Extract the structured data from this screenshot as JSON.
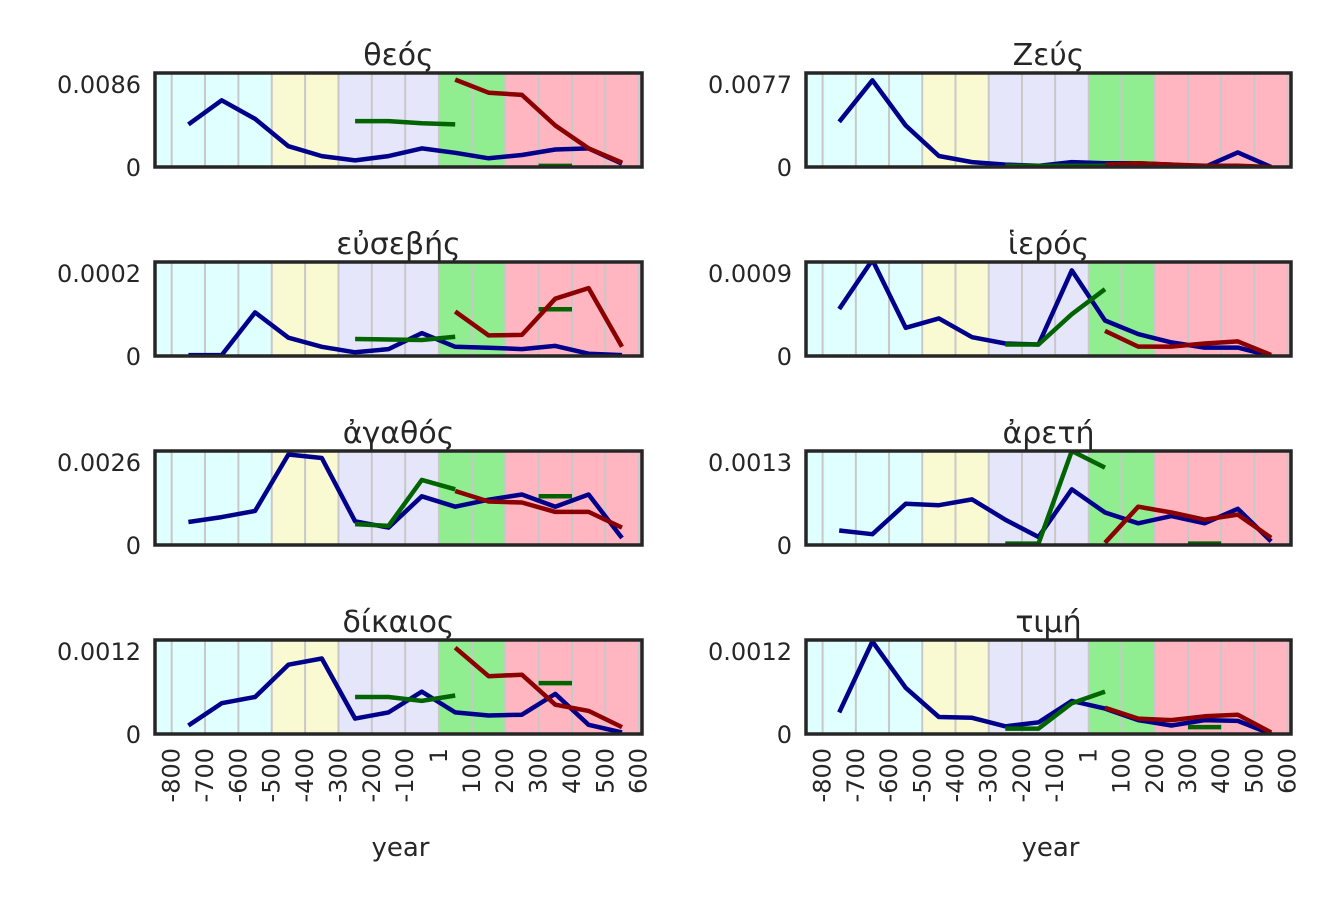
{
  "chart_data": {
    "type": "line",
    "xlabel": "year",
    "ylabel": "",
    "x_ticks": [
      "-800",
      "-700",
      "-600",
      "-500",
      "-400",
      "-300",
      "-200",
      "-100",
      "1",
      "100",
      "200",
      "300",
      "400",
      "500",
      "600"
    ],
    "xlim": [
      -850,
      610
    ],
    "period_bands": [
      {
        "start": -850,
        "end": -500,
        "color": "#e0ffff"
      },
      {
        "start": -500,
        "end": -300,
        "color": "#fafad2"
      },
      {
        "start": -300,
        "end": 1,
        "color": "#e6e6fa"
      },
      {
        "start": 1,
        "end": 200,
        "color": "#90ee90"
      },
      {
        "start": 200,
        "end": 610,
        "color": "#ffb6c1"
      }
    ],
    "series_colors": {
      "blue": "#00008b",
      "green": "#006400",
      "red": "#8b0000"
    },
    "panels": [
      {
        "title": "θεός",
        "ymax_label": "0.0086",
        "ymin_label": "0",
        "ylim": [
          0,
          0.0086
        ],
        "series": [
          {
            "color": "blue",
            "x": [
              -750,
              -650,
              -550,
              -450,
              -350,
              -250,
              -150,
              -50,
              50,
              150,
              250,
              350,
              450,
              550
            ],
            "y": [
              0.0039,
              0.0061,
              0.0044,
              0.0019,
              0.001,
              0.0006,
              0.001,
              0.0017,
              0.0013,
              0.0008,
              0.0011,
              0.0016,
              0.0017,
              0.0003
            ]
          },
          {
            "color": "green",
            "x": [
              -250,
              -150,
              -50,
              50
            ],
            "y": [
              0.0042,
              0.0042,
              0.004,
              0.0039
            ]
          },
          {
            "color": "green",
            "x": [
              300,
              400
            ],
            "y": [
              0.0001,
              0.0001
            ]
          },
          {
            "color": "red",
            "x": [
              50,
              150,
              250,
              350,
              450,
              550
            ],
            "y": [
              0.008,
              0.0068,
              0.0066,
              0.0038,
              0.0017,
              0.0004
            ]
          }
        ]
      },
      {
        "title": "Ζεύς",
        "ymax_label": "0.0077",
        "ymin_label": "0",
        "ylim": [
          0,
          0.0077
        ],
        "series": [
          {
            "color": "blue",
            "x": [
              -750,
              -650,
              -550,
              -450,
              -350,
              -250,
              -150,
              -50,
              50,
              150,
              250,
              350,
              450,
              550
            ],
            "y": [
              0.0037,
              0.0071,
              0.0034,
              0.0009,
              0.0004,
              0.0002,
              0.0001,
              0.0004,
              0.0003,
              0.0003,
              0.0002,
              0.0,
              0.0012,
              0.0
            ]
          },
          {
            "color": "green",
            "x": [
              -250,
              -150,
              -50,
              50
            ],
            "y": [
              0.0001,
              0.0001,
              0.0001,
              0.0001
            ]
          },
          {
            "color": "red",
            "x": [
              50,
              150,
              250,
              350,
              450,
              550
            ],
            "y": [
              0.0002,
              0.0003,
              0.0002,
              0.0001,
              0.0001,
              0.0
            ]
          }
        ]
      },
      {
        "title": "εὐσεβής",
        "ymax_label": "0.0002",
        "ymin_label": "0",
        "ylim": [
          0,
          0.000205
        ],
        "series": [
          {
            "color": "blue",
            "x": [
              -750,
              -650,
              -550,
              -450,
              -350,
              -250,
              -150,
              -50,
              50,
              150,
              250,
              350,
              450,
              550
            ],
            "y": [
              2e-06,
              2e-06,
              9.5e-05,
              4e-05,
              2e-05,
              8e-06,
              1.5e-05,
              5e-05,
              2e-05,
              1.8e-05,
              1.5e-05,
              2.2e-05,
              5e-06,
              2e-06
            ]
          },
          {
            "color": "green",
            "x": [
              -250,
              -150,
              -50,
              50
            ],
            "y": [
              3.7e-05,
              3.6e-05,
              3.5e-05,
              4.2e-05
            ]
          },
          {
            "color": "green",
            "x": [
              300,
              400
            ],
            "y": [
              0.000102,
              0.000102
            ]
          },
          {
            "color": "red",
            "x": [
              50,
              150,
              250,
              350,
              450,
              550
            ],
            "y": [
              9.7e-05,
              4.5e-05,
              4.6e-05,
              0.000125,
              0.000148,
              2e-05
            ]
          }
        ]
      },
      {
        "title": "ἱερός",
        "ymax_label": "0.0009",
        "ymin_label": "0",
        "ylim": [
          0,
          0.0009
        ],
        "series": [
          {
            "color": "blue",
            "x": [
              -750,
              -650,
              -550,
              -450,
              -350,
              -250,
              -150,
              -50,
              50,
              150,
              250,
              350,
              450,
              550
            ],
            "y": [
              0.00045,
              0.00092,
              0.00027,
              0.00036,
              0.00018,
              0.00012,
              0.00011,
              0.00082,
              0.00034,
              0.00021,
              0.00013,
              8e-05,
              8e-05,
              0.0
            ]
          },
          {
            "color": "green",
            "x": [
              -250,
              -150,
              -50,
              50
            ],
            "y": [
              0.00011,
              0.00011,
              0.0004,
              0.00064
            ]
          },
          {
            "color": "red",
            "x": [
              50,
              150,
              250,
              350,
              450,
              550
            ],
            "y": [
              0.00024,
              9e-05,
              9e-05,
              0.00012,
              0.00014,
              1e-05
            ]
          }
        ]
      },
      {
        "title": "ἀγαθός",
        "ymax_label": "0.0026",
        "ymin_label": "0",
        "ylim": [
          0,
          0.0027
        ],
        "series": [
          {
            "color": "blue",
            "x": [
              -750,
              -650,
              -550,
              -450,
              -350,
              -250,
              -150,
              -50,
              50,
              150,
              250,
              350,
              450,
              550
            ],
            "y": [
              0.00066,
              0.0008,
              0.00098,
              0.0026,
              0.0025,
              0.00068,
              0.0005,
              0.0014,
              0.0011,
              0.0013,
              0.00145,
              0.0011,
              0.00145,
              0.0002
            ]
          },
          {
            "color": "green",
            "x": [
              -250,
              -150,
              -50,
              50
            ],
            "y": [
              0.0006,
              0.00055,
              0.00187,
              0.0016
            ]
          },
          {
            "color": "green",
            "x": [
              300,
              400
            ],
            "y": [
              0.0014,
              0.0014
            ]
          },
          {
            "color": "red",
            "x": [
              50,
              150,
              250,
              350,
              450,
              550
            ],
            "y": [
              0.00155,
              0.00125,
              0.00122,
              0.00095,
              0.00095,
              0.0005
            ]
          }
        ]
      },
      {
        "title": "ἀρετή",
        "ymax_label": "0.0013",
        "ymin_label": "0",
        "ylim": [
          0,
          0.0013
        ],
        "series": [
          {
            "color": "blue",
            "x": [
              -750,
              -650,
              -550,
              -450,
              -350,
              -250,
              -150,
              -50,
              50,
              150,
              250,
              350,
              450,
              550
            ],
            "y": [
              0.0002,
              0.00015,
              0.00057,
              0.00055,
              0.00063,
              0.00035,
              0.00011,
              0.00077,
              0.00045,
              0.0003,
              0.0004,
              0.0003,
              0.0005,
              5e-05
            ]
          },
          {
            "color": "green",
            "x": [
              -250,
              -150,
              -50,
              50
            ],
            "y": [
              2e-05,
              2e-05,
              0.0013,
              0.00107
            ]
          },
          {
            "color": "green",
            "x": [
              300,
              400
            ],
            "y": [
              2e-05,
              2e-05
            ]
          },
          {
            "color": "red",
            "x": [
              50,
              150,
              250,
              350,
              450,
              550
            ],
            "y": [
              3e-05,
              0.00053,
              0.00045,
              0.00035,
              0.00042,
              0.0001
            ]
          }
        ]
      },
      {
        "title": "δίκαιος",
        "ymax_label": "0.0012",
        "ymin_label": "0",
        "ylim": [
          0,
          0.00122
        ],
        "series": [
          {
            "color": "blue",
            "x": [
              -750,
              -650,
              -550,
              -450,
              -350,
              -250,
              -150,
              -50,
              50,
              150,
              250,
              350,
              450,
              550
            ],
            "y": [
              0.00011,
              0.0004,
              0.00048,
              0.0009,
              0.00098,
              0.0002,
              0.00028,
              0.00055,
              0.00028,
              0.00024,
              0.00025,
              0.00052,
              0.00012,
              2e-05
            ]
          },
          {
            "color": "green",
            "x": [
              -250,
              -150,
              -50,
              50
            ],
            "y": [
              0.00048,
              0.00048,
              0.00043,
              0.0005
            ]
          },
          {
            "color": "green",
            "x": [
              300,
              400
            ],
            "y": [
              0.00066,
              0.00066
            ]
          },
          {
            "color": "red",
            "x": [
              50,
              150,
              250,
              350,
              450,
              550
            ],
            "y": [
              0.00112,
              0.00075,
              0.00077,
              0.00038,
              0.0003,
              9e-05
            ]
          }
        ]
      },
      {
        "title": "τιμή",
        "ymax_label": "0.0012",
        "ymin_label": "0",
        "ylim": [
          0,
          0.00122
        ],
        "series": [
          {
            "color": "blue",
            "x": [
              -750,
              -650,
              -550,
              -450,
              -350,
              -250,
              -150,
              -50,
              50,
              150,
              250,
              350,
              450,
              550
            ],
            "y": [
              0.00028,
              0.0012,
              0.0006,
              0.00022,
              0.00021,
              0.0001,
              0.00015,
              0.00043,
              0.00033,
              0.00018,
              0.00011,
              0.00018,
              0.00017,
              0.0
            ]
          },
          {
            "color": "green",
            "x": [
              -250,
              -150,
              -50,
              50
            ],
            "y": [
              7e-05,
              7e-05,
              0.0004,
              0.00055
            ]
          },
          {
            "color": "green",
            "x": [
              300,
              400
            ],
            "y": [
              9e-05,
              9e-05
            ]
          },
          {
            "color": "red",
            "x": [
              50,
              150,
              250,
              350,
              450,
              550
            ],
            "y": [
              0.00034,
              0.0002,
              0.00018,
              0.00023,
              0.00025,
              2e-05
            ]
          }
        ]
      }
    ]
  }
}
